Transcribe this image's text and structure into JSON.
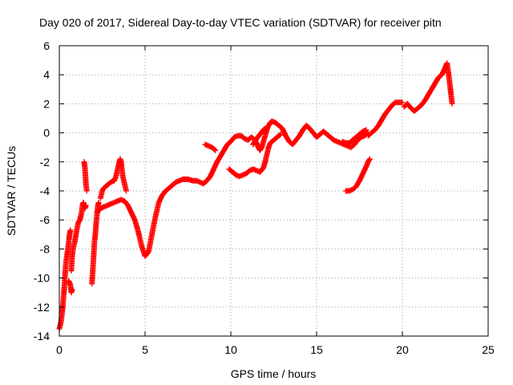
{
  "chart_data": {
    "type": "scatter",
    "title": "Day 020 of 2017, Sidereal Day-to-day VTEC variation (SDTVAR) for receiver pitn",
    "xlabel": "GPS time / hours",
    "ylabel": "SDTVAR / TECUs",
    "xlim": [
      0,
      25
    ],
    "ylim": [
      -14,
      6
    ],
    "xticks": [
      "0",
      "5",
      "10",
      "15",
      "20",
      "25"
    ],
    "yticks": [
      "-14",
      "-12",
      "-10",
      "-8",
      "-6",
      "-4",
      "-2",
      "0",
      "2",
      "4",
      "6"
    ],
    "grid": true,
    "marker": "plus",
    "color": "#ff0000",
    "segments": [
      [
        [
          0.0,
          -13.5
        ],
        [
          0.1,
          -13.0
        ],
        [
          0.2,
          -12.0
        ],
        [
          0.3,
          -10.5
        ],
        [
          0.35,
          -9.5
        ],
        [
          0.4,
          -8.8
        ],
        [
          0.5,
          -8.0
        ],
        [
          0.55,
          -7.5
        ],
        [
          0.6,
          -7.0
        ],
        [
          0.65,
          -6.7
        ]
      ],
      [
        [
          0.55,
          -10.2
        ],
        [
          0.65,
          -10.5
        ],
        [
          0.7,
          -11.0
        ],
        [
          0.75,
          -10.8
        ]
      ],
      [
        [
          0.7,
          -9.5
        ],
        [
          0.75,
          -8.5
        ],
        [
          0.8,
          -8.0
        ],
        [
          0.9,
          -7.5
        ],
        [
          1.0,
          -6.8
        ],
        [
          1.1,
          -6.2
        ],
        [
          1.2,
          -6.0
        ],
        [
          1.3,
          -5.5
        ],
        [
          1.35,
          -5.0
        ],
        [
          1.4,
          -4.8
        ],
        [
          1.5,
          -5.2
        ],
        [
          1.55,
          -5.0
        ]
      ],
      [
        [
          1.45,
          -2.0
        ],
        [
          1.5,
          -2.5
        ],
        [
          1.55,
          -3.5
        ],
        [
          1.6,
          -4.0
        ]
      ],
      [
        [
          1.9,
          -10.4
        ],
        [
          1.95,
          -9.5
        ],
        [
          2.0,
          -8.5
        ],
        [
          2.05,
          -7.5
        ],
        [
          2.1,
          -7.0
        ],
        [
          2.15,
          -6.2
        ],
        [
          2.2,
          -5.6
        ],
        [
          2.25,
          -5.0
        ],
        [
          2.3,
          -4.8
        ]
      ],
      [
        [
          2.2,
          -5.5
        ],
        [
          2.4,
          -5.2
        ],
        [
          2.6,
          -5.1
        ],
        [
          2.8,
          -5.0
        ],
        [
          3.0,
          -4.9
        ],
        [
          3.2,
          -4.8
        ],
        [
          3.4,
          -4.7
        ],
        [
          3.6,
          -4.6
        ],
        [
          3.8,
          -4.7
        ],
        [
          4.0,
          -5.0
        ],
        [
          4.2,
          -5.5
        ],
        [
          4.4,
          -6.0
        ],
        [
          4.6,
          -6.8
        ],
        [
          4.8,
          -7.8
        ],
        [
          5.0,
          -8.5
        ],
        [
          5.2,
          -8.2
        ],
        [
          5.4,
          -7.0
        ],
        [
          5.6,
          -5.8
        ],
        [
          5.8,
          -4.8
        ],
        [
          6.0,
          -4.3
        ],
        [
          6.2,
          -4.0
        ],
        [
          6.5,
          -3.7
        ],
        [
          6.8,
          -3.4
        ],
        [
          7.0,
          -3.3
        ],
        [
          7.2,
          -3.2
        ],
        [
          7.5,
          -3.2
        ],
        [
          7.8,
          -3.3
        ],
        [
          8.0,
          -3.3
        ],
        [
          8.2,
          -3.4
        ],
        [
          8.4,
          -3.5
        ],
        [
          8.6,
          -3.3
        ],
        [
          8.8,
          -3.0
        ],
        [
          9.0,
          -2.5
        ],
        [
          9.2,
          -2.0
        ],
        [
          9.4,
          -1.6
        ],
        [
          9.6,
          -1.2
        ],
        [
          9.8,
          -0.8
        ],
        [
          10.0,
          -0.6
        ],
        [
          10.2,
          -0.3
        ],
        [
          10.4,
          -0.2
        ],
        [
          10.6,
          -0.2
        ],
        [
          10.8,
          -0.4
        ],
        [
          11.0,
          -0.5
        ],
        [
          11.2,
          -0.3
        ],
        [
          11.4,
          -0.5
        ],
        [
          11.5,
          -0.7
        ],
        [
          11.6,
          -1.0
        ],
        [
          11.7,
          -1.2
        ],
        [
          11.8,
          -1.0
        ],
        [
          11.9,
          -0.6
        ],
        [
          12.0,
          -0.2
        ],
        [
          12.1,
          0.2
        ],
        [
          12.2,
          0.5
        ],
        [
          12.3,
          0.7
        ],
        [
          12.4,
          0.8
        ],
        [
          12.6,
          0.7
        ],
        [
          12.8,
          0.5
        ],
        [
          13.0,
          0.3
        ],
        [
          13.2,
          -0.2
        ],
        [
          13.4,
          -0.6
        ],
        [
          13.6,
          -0.8
        ],
        [
          13.8,
          -0.5
        ],
        [
          14.0,
          -0.2
        ],
        [
          14.2,
          0.2
        ],
        [
          14.4,
          0.5
        ],
        [
          14.6,
          0.3
        ],
        [
          14.8,
          0.0
        ],
        [
          15.0,
          -0.3
        ],
        [
          15.2,
          -0.1
        ],
        [
          15.4,
          0.1
        ],
        [
          15.6,
          -0.1
        ],
        [
          15.8,
          -0.3
        ],
        [
          16.0,
          -0.5
        ],
        [
          16.2,
          -0.6
        ],
        [
          16.4,
          -0.7
        ],
        [
          16.6,
          -0.8
        ],
        [
          16.8,
          -0.9
        ],
        [
          17.0,
          -1.0
        ],
        [
          17.2,
          -0.8
        ],
        [
          17.4,
          -0.5
        ],
        [
          17.6,
          -0.3
        ],
        [
          17.8,
          -0.2
        ],
        [
          18.0,
          0.0
        ]
      ],
      [
        [
          2.4,
          -4.5
        ],
        [
          2.5,
          -4.0
        ],
        [
          2.6,
          -3.8
        ],
        [
          2.8,
          -3.6
        ],
        [
          3.0,
          -3.4
        ],
        [
          3.2,
          -3.3
        ],
        [
          3.3,
          -3.0
        ],
        [
          3.4,
          -2.5
        ],
        [
          3.5,
          -2.0
        ],
        [
          3.55,
          -1.8
        ],
        [
          3.6,
          -2.0
        ],
        [
          3.65,
          -2.5
        ],
        [
          3.7,
          -3.0
        ],
        [
          3.8,
          -3.5
        ],
        [
          3.9,
          -4.0
        ]
      ],
      [
        [
          8.5,
          -0.8
        ],
        [
          8.7,
          -0.9
        ],
        [
          8.9,
          -1.0
        ],
        [
          9.1,
          -1.2
        ]
      ],
      [
        [
          9.9,
          -2.5
        ],
        [
          10.1,
          -2.7
        ],
        [
          10.3,
          -2.9
        ],
        [
          10.5,
          -3.0
        ],
        [
          10.7,
          -2.9
        ],
        [
          10.9,
          -2.8
        ],
        [
          11.1,
          -2.6
        ],
        [
          11.3,
          -2.5
        ],
        [
          11.5,
          -2.6
        ],
        [
          11.7,
          -2.7
        ],
        [
          11.9,
          -2.4
        ],
        [
          12.0,
          -2.0
        ],
        [
          12.1,
          -1.5
        ],
        [
          12.2,
          -1.0
        ],
        [
          12.3,
          -0.7
        ],
        [
          12.5,
          -0.5
        ],
        [
          12.7,
          -0.3
        ],
        [
          12.9,
          -0.1
        ]
      ],
      [
        [
          11.3,
          -0.8
        ],
        [
          11.5,
          -0.4
        ],
        [
          11.7,
          -0.1
        ],
        [
          11.9,
          0.2
        ],
        [
          12.0,
          0.3
        ]
      ],
      [
        [
          16.5,
          -0.6
        ],
        [
          16.7,
          -0.7
        ],
        [
          16.9,
          -0.7
        ],
        [
          17.1,
          -0.5
        ],
        [
          17.3,
          -0.3
        ],
        [
          17.5,
          -0.1
        ],
        [
          17.7,
          0.1
        ],
        [
          17.9,
          0.2
        ]
      ],
      [
        [
          16.7,
          -4.0
        ],
        [
          16.9,
          -4.0
        ],
        [
          17.1,
          -3.9
        ],
        [
          17.3,
          -3.7
        ],
        [
          17.5,
          -3.3
        ],
        [
          17.7,
          -2.8
        ],
        [
          17.9,
          -2.3
        ],
        [
          18.0,
          -2.0
        ],
        [
          18.1,
          -1.8
        ]
      ],
      [
        [
          18.0,
          -0.2
        ],
        [
          18.2,
          0.0
        ],
        [
          18.4,
          0.2
        ],
        [
          18.6,
          0.5
        ],
        [
          18.8,
          0.9
        ],
        [
          19.0,
          1.3
        ],
        [
          19.2,
          1.6
        ],
        [
          19.4,
          1.9
        ],
        [
          19.6,
          2.1
        ],
        [
          19.8,
          2.1
        ],
        [
          20.0,
          2.1
        ]
      ],
      [
        [
          20.1,
          1.8
        ],
        [
          20.3,
          2.0
        ],
        [
          20.5,
          1.7
        ],
        [
          20.7,
          1.5
        ],
        [
          20.9,
          1.7
        ],
        [
          21.1,
          1.9
        ],
        [
          21.3,
          2.2
        ],
        [
          21.5,
          2.6
        ],
        [
          21.7,
          3.0
        ],
        [
          21.9,
          3.4
        ],
        [
          22.1,
          3.8
        ],
        [
          22.3,
          4.0
        ],
        [
          22.5,
          4.5
        ],
        [
          22.6,
          4.8
        ],
        [
          22.7,
          4.0
        ],
        [
          22.8,
          3.0
        ],
        [
          22.85,
          2.5
        ],
        [
          22.9,
          2.0
        ]
      ]
    ]
  }
}
